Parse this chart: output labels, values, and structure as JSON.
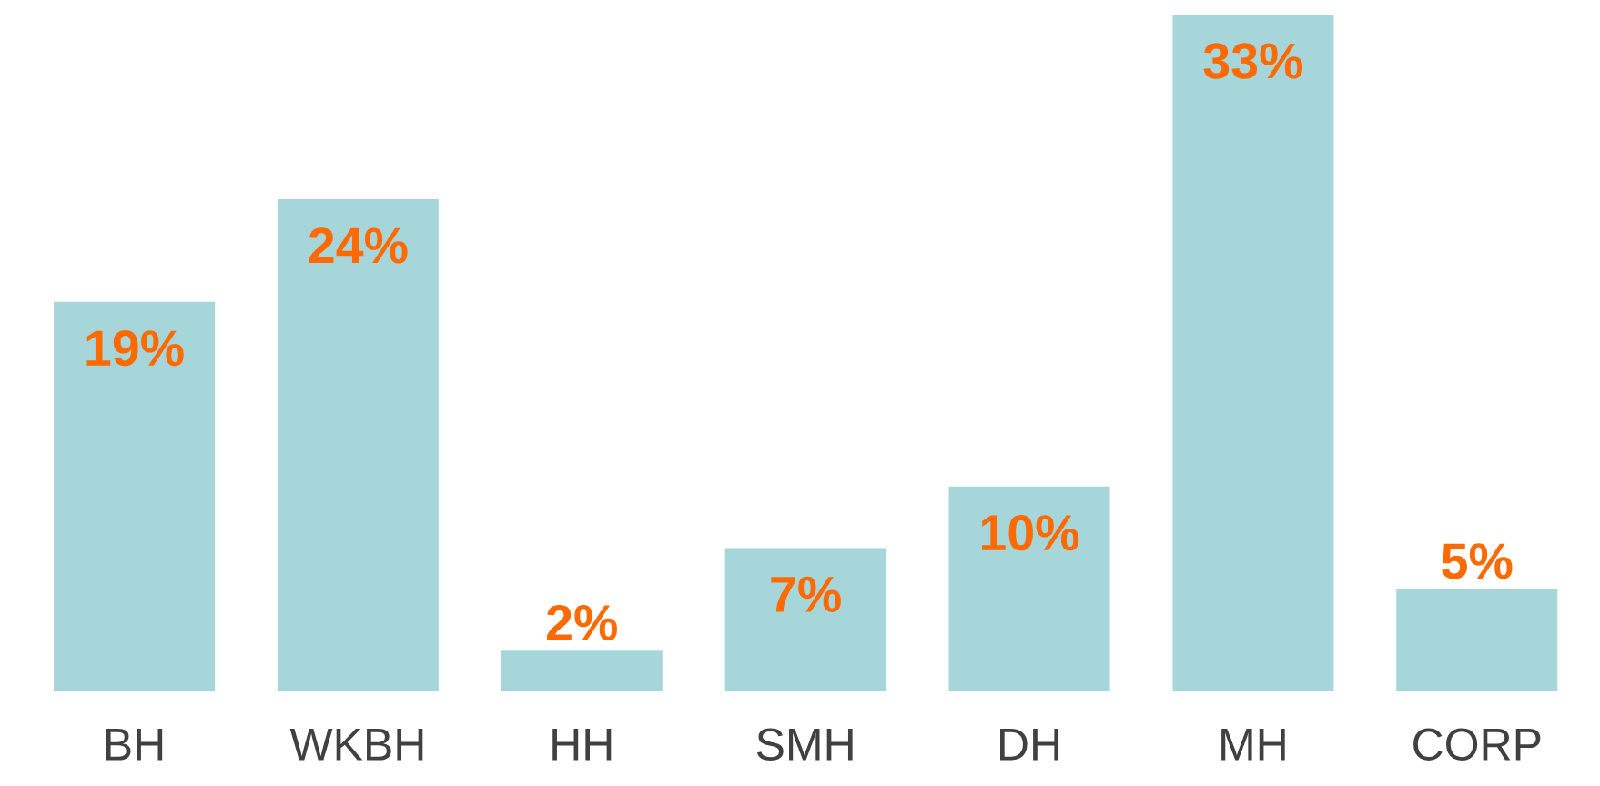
{
  "chart_data": {
    "type": "bar",
    "categories": [
      "BH",
      "WKBH",
      "HH",
      "SMH",
      "DH",
      "MH",
      "CORP"
    ],
    "values": [
      19,
      24,
      2,
      7,
      10,
      33,
      5
    ],
    "value_labels": [
      "19%",
      "24%",
      "2%",
      "7%",
      "10%",
      "33%",
      "5%"
    ],
    "color": "#a6d6da",
    "grid": false,
    "legend": false
  }
}
